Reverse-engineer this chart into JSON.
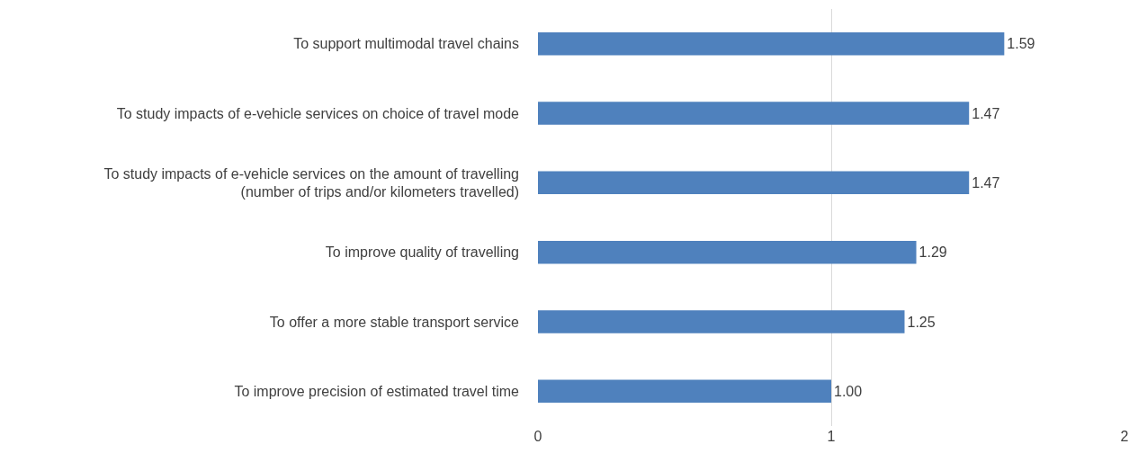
{
  "chart_data": {
    "type": "bar",
    "orientation": "horizontal",
    "categories": [
      "To support multimodal travel chains",
      "To study impacts of e-vehicle services on choice of travel mode",
      "To study impacts of e-vehicle services on the amount of travelling\n(number of trips and/or kilometers travelled)",
      "To improve quality of travelling",
      "To offer a more stable transport service",
      "To improve precision of estimated travel time"
    ],
    "values": [
      1.59,
      1.47,
      1.47,
      1.29,
      1.25,
      1.0
    ],
    "value_labels": [
      "1.59",
      "1.47",
      "1.47",
      "1.29",
      "1.25",
      "1.00"
    ],
    "color": "#4f81bd",
    "xlim": [
      0,
      2
    ],
    "xticks": [
      0,
      1,
      2
    ],
    "grid": "x"
  }
}
